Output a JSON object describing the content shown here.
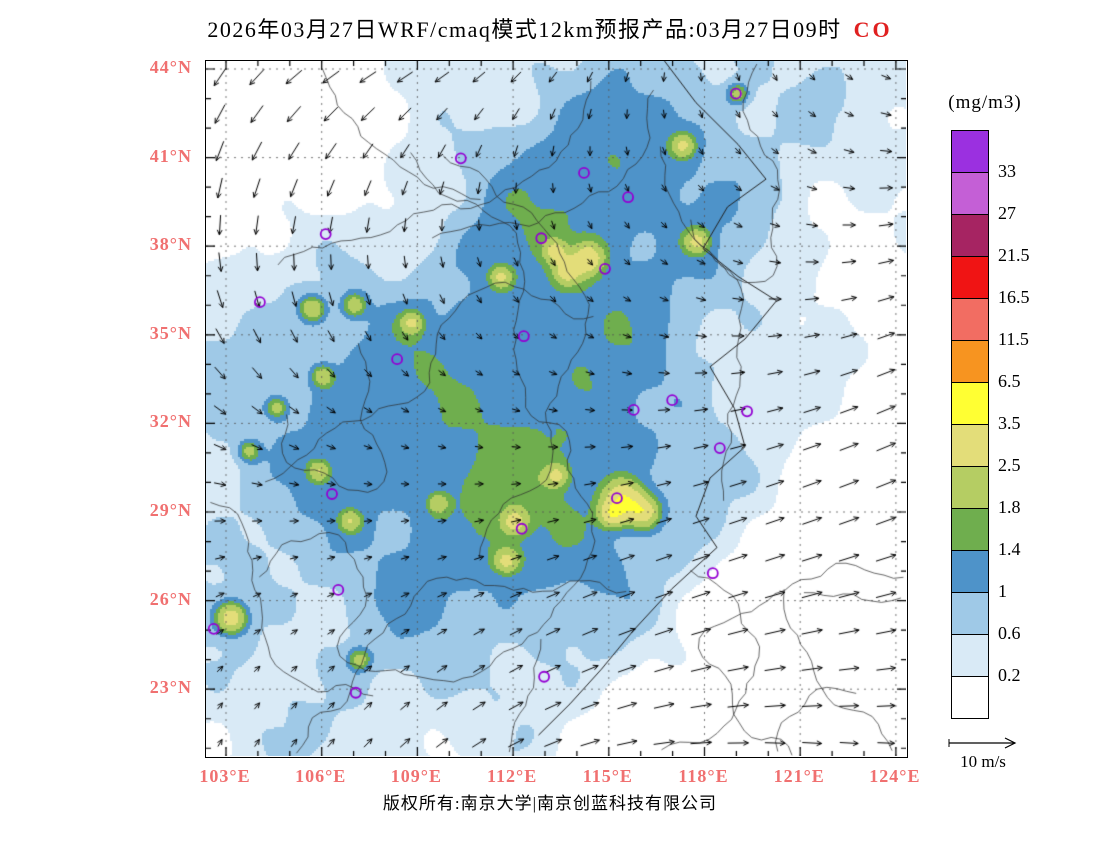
{
  "title": {
    "main": "2026年03月27日WRF/cmaq模式12km预报产品:03月27日09时",
    "species": "CO",
    "species_color": "#E02020"
  },
  "axes": {
    "lat_ticks": [
      "44°N",
      "41°N",
      "38°N",
      "35°N",
      "32°N",
      "29°N",
      "26°N",
      "23°N"
    ],
    "lon_ticks": [
      "103°E",
      "106°E",
      "109°E",
      "112°E",
      "115°E",
      "118°E",
      "121°E",
      "124°E"
    ],
    "tick_label_color": "#F07070"
  },
  "legend": {
    "units": "(mg/m3)",
    "boundary_labels_top_to_bottom": [
      "33",
      "27",
      "21.5",
      "16.5",
      "11.5",
      "6.5",
      "3.5",
      "2.5",
      "1.8",
      "1.4",
      "1",
      "0.6",
      "0.2"
    ],
    "colors_top_to_bottom": [
      "#9B30E0",
      "#C45FD6",
      "#A62462",
      "#F01414",
      "#F26D62",
      "#F79420",
      "#FFFF33",
      "#E3DD79",
      "#B5CD63",
      "#6FAE4E",
      "#4E93C9",
      "#9FC9E7",
      "#D9EAF6",
      "#FFFFFF"
    ]
  },
  "wind_scale": {
    "label": "10 m/s"
  },
  "footer": {
    "text": "版权所有:南京大学|南京创蓝科技有限公司"
  }
}
